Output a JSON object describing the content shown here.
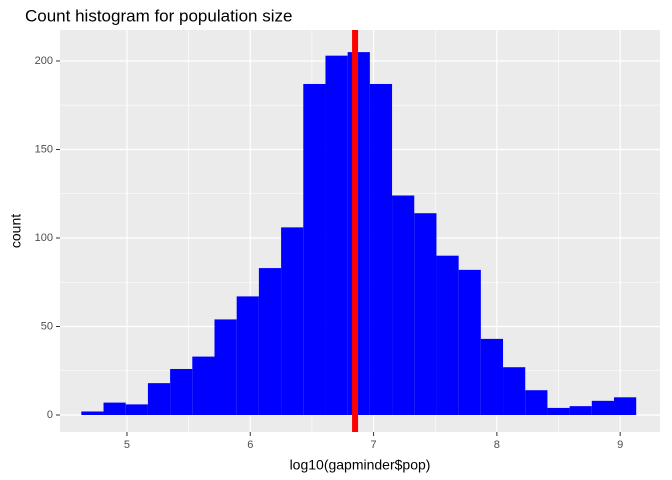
{
  "chart_data": {
    "type": "histogram",
    "title": "Count histogram for population size",
    "x_label": "log10(gapminder$pop)",
    "y_label": "count",
    "bins": [
      4.63,
      4.81,
      4.99,
      5.17,
      5.35,
      5.53,
      5.71,
      5.89,
      6.07,
      6.25,
      6.43,
      6.61,
      6.79,
      6.97,
      7.15,
      7.33,
      7.51,
      7.69,
      7.87,
      8.05,
      8.23,
      8.41,
      8.59,
      8.77,
      8.95,
      9.13
    ],
    "values": [
      2,
      7,
      6,
      18,
      26,
      33,
      54,
      67,
      83,
      106,
      187,
      203,
      205,
      187,
      124,
      114,
      90,
      82,
      43,
      27,
      14,
      4,
      5,
      8,
      10
    ],
    "color": "#0000ff",
    "vline": 6.85,
    "vline_color": "#ff0000",
    "xlim": [
      4.457,
      9.323
    ],
    "xticks": [
      5,
      6,
      7,
      8,
      9
    ],
    "ylim": [
      -9.6,
      217.5
    ],
    "yticks": [
      0,
      50,
      100,
      150,
      200
    ],
    "grid": true
  }
}
